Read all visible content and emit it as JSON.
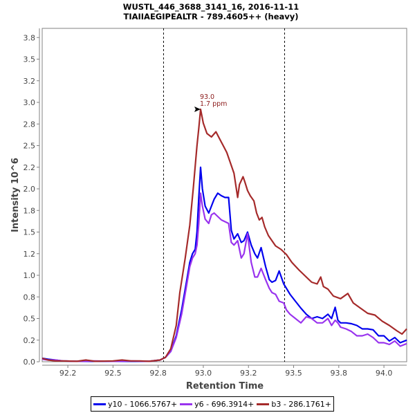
{
  "chart_data": {
    "type": "line",
    "title": "WUSTL_446_3688_3141_16, 2016-11-11",
    "subtitle": "TIAIIAEGIPEALTR - 789.4605++ (heavy)",
    "xlabel": "Retention Time",
    "ylabel": "Intensity 10^6",
    "xlim": [
      92.108,
      94.126
    ],
    "ylim": [
      0,
      3.856
    ],
    "x_ticks": [
      92.25,
      92.5,
      92.75,
      93.0,
      93.25,
      93.5,
      93.75,
      94.0
    ],
    "x_tick_labels": [
      "92.2",
      "92.5",
      "92.8",
      "93.0",
      "93.2",
      "93.5",
      "93.8",
      "94.0"
    ],
    "y_ticks": [
      0,
      0.25,
      0.5,
      0.75,
      1.0,
      1.25,
      1.5,
      1.75,
      2.0,
      2.25,
      2.5,
      2.75,
      3.0,
      3.25,
      3.5,
      3.75
    ],
    "y_tick_labels": [
      "0.0",
      "0.2",
      "0.5",
      "0.8",
      "1.0",
      "1.2",
      "1.5",
      "1.8",
      "2.0",
      "2.2",
      "2.5",
      "2.8",
      "3.0",
      "3.2",
      "3.5",
      "3.8"
    ],
    "grid": false,
    "legend_position": "bottom-center",
    "boundary_lines": [
      92.78,
      93.45
    ],
    "annotation": {
      "x": 93.0,
      "y": 2.92,
      "label_rt": "93.0",
      "label_ppm": "1.7 ppm"
    },
    "series": [
      {
        "name": "y10 - 1066.5767+",
        "color": "#0000ee",
        "x": [
          92.108,
          92.14,
          92.18,
          92.22,
          92.3,
          92.4,
          92.5,
          92.6,
          92.7,
          92.76,
          92.79,
          92.82,
          92.85,
          92.88,
          92.905,
          92.925,
          92.94,
          92.955,
          92.965,
          92.975,
          92.985,
          92.995,
          93.01,
          93.03,
          93.045,
          93.06,
          93.08,
          93.1,
          93.12,
          93.14,
          93.155,
          93.17,
          93.19,
          93.21,
          93.225,
          93.245,
          93.265,
          93.285,
          93.3,
          93.32,
          93.345,
          93.365,
          93.38,
          93.4,
          93.42,
          93.445,
          93.46,
          93.48,
          93.51,
          93.54,
          93.57,
          93.6,
          93.63,
          93.66,
          93.69,
          93.71,
          93.73,
          93.745,
          93.76,
          93.79,
          93.82,
          93.85,
          93.88,
          93.91,
          93.94,
          93.97,
          94.0,
          94.03,
          94.06,
          94.09,
          94.126
        ],
        "values": [
          0.04,
          0.03,
          0.02,
          0.01,
          0.005,
          0.005,
          0.005,
          0.005,
          0.005,
          0.02,
          0.05,
          0.12,
          0.3,
          0.6,
          0.9,
          1.15,
          1.25,
          1.3,
          1.5,
          1.9,
          2.25,
          2.0,
          1.8,
          1.72,
          1.8,
          1.88,
          1.95,
          1.92,
          1.9,
          1.9,
          1.52,
          1.42,
          1.48,
          1.38,
          1.4,
          1.5,
          1.35,
          1.25,
          1.2,
          1.32,
          1.1,
          0.95,
          0.92,
          0.94,
          1.05,
          0.9,
          0.85,
          0.78,
          0.7,
          0.62,
          0.55,
          0.5,
          0.52,
          0.5,
          0.55,
          0.5,
          0.63,
          0.48,
          0.45,
          0.45,
          0.44,
          0.42,
          0.38,
          0.38,
          0.37,
          0.3,
          0.3,
          0.24,
          0.28,
          0.22,
          0.25
        ]
      },
      {
        "name": "y6 - 696.3914+",
        "color": "#9933ee",
        "x": [
          92.108,
          92.14,
          92.18,
          92.22,
          92.3,
          92.4,
          92.5,
          92.6,
          92.7,
          92.76,
          92.79,
          92.82,
          92.85,
          92.88,
          92.905,
          92.925,
          92.94,
          92.955,
          92.965,
          92.975,
          92.985,
          92.995,
          93.01,
          93.03,
          93.045,
          93.06,
          93.08,
          93.1,
          93.12,
          93.14,
          93.155,
          93.17,
          93.19,
          93.21,
          93.225,
          93.245,
          93.265,
          93.285,
          93.3,
          93.32,
          93.345,
          93.365,
          93.38,
          93.4,
          93.42,
          93.445,
          93.46,
          93.48,
          93.51,
          93.54,
          93.57,
          93.6,
          93.63,
          93.66,
          93.69,
          93.71,
          93.73,
          93.745,
          93.76,
          93.79,
          93.82,
          93.85,
          93.88,
          93.91,
          93.94,
          93.97,
          94.0,
          94.03,
          94.06,
          94.09,
          94.126
        ],
        "values": [
          0.03,
          0.02,
          0.02,
          0.01,
          0.005,
          0.01,
          0.005,
          0.01,
          0.005,
          0.02,
          0.05,
          0.12,
          0.28,
          0.55,
          0.85,
          1.1,
          1.2,
          1.25,
          1.35,
          1.6,
          1.95,
          1.8,
          1.65,
          1.6,
          1.7,
          1.72,
          1.68,
          1.64,
          1.62,
          1.6,
          1.38,
          1.35,
          1.4,
          1.2,
          1.25,
          1.48,
          1.15,
          0.98,
          0.98,
          1.08,
          0.95,
          0.85,
          0.8,
          0.78,
          0.7,
          0.68,
          0.6,
          0.55,
          0.5,
          0.45,
          0.52,
          0.5,
          0.45,
          0.45,
          0.5,
          0.42,
          0.48,
          0.45,
          0.4,
          0.38,
          0.35,
          0.3,
          0.3,
          0.32,
          0.28,
          0.22,
          0.22,
          0.2,
          0.24,
          0.18,
          0.21
        ]
      },
      {
        "name": "b3 - 286.1761+",
        "color": "#a52a2a",
        "x": [
          92.108,
          92.14,
          92.18,
          92.22,
          92.3,
          92.35,
          92.4,
          92.5,
          92.55,
          92.6,
          92.65,
          92.7,
          92.76,
          92.79,
          92.82,
          92.85,
          92.87,
          92.9,
          92.925,
          92.945,
          92.965,
          92.975,
          92.985,
          93.0,
          93.02,
          93.045,
          93.07,
          93.09,
          93.115,
          93.13,
          93.15,
          93.17,
          93.19,
          93.2,
          93.22,
          93.23,
          93.245,
          93.26,
          93.28,
          93.295,
          93.31,
          93.325,
          93.34,
          93.36,
          93.38,
          93.4,
          93.43,
          93.46,
          93.49,
          93.53,
          93.57,
          93.6,
          93.63,
          93.65,
          93.665,
          93.69,
          93.72,
          93.76,
          93.8,
          93.83,
          93.87,
          93.91,
          93.95,
          93.99,
          94.03,
          94.07,
          94.1,
          94.126
        ],
        "values": [
          0.04,
          0.02,
          0.01,
          0.01,
          0.005,
          0.02,
          0.005,
          0.01,
          0.02,
          0.01,
          0.01,
          0.005,
          0.02,
          0.05,
          0.15,
          0.42,
          0.8,
          1.2,
          1.58,
          2.02,
          2.5,
          2.7,
          2.92,
          2.76,
          2.64,
          2.6,
          2.66,
          2.58,
          2.48,
          2.42,
          2.3,
          2.18,
          1.9,
          2.05,
          2.14,
          2.08,
          1.98,
          1.92,
          1.86,
          1.72,
          1.64,
          1.67,
          1.56,
          1.46,
          1.4,
          1.34,
          1.3,
          1.24,
          1.15,
          1.06,
          0.98,
          0.92,
          0.9,
          0.98,
          0.87,
          0.84,
          0.76,
          0.73,
          0.79,
          0.68,
          0.62,
          0.56,
          0.54,
          0.47,
          0.42,
          0.36,
          0.32,
          0.38
        ]
      }
    ]
  }
}
